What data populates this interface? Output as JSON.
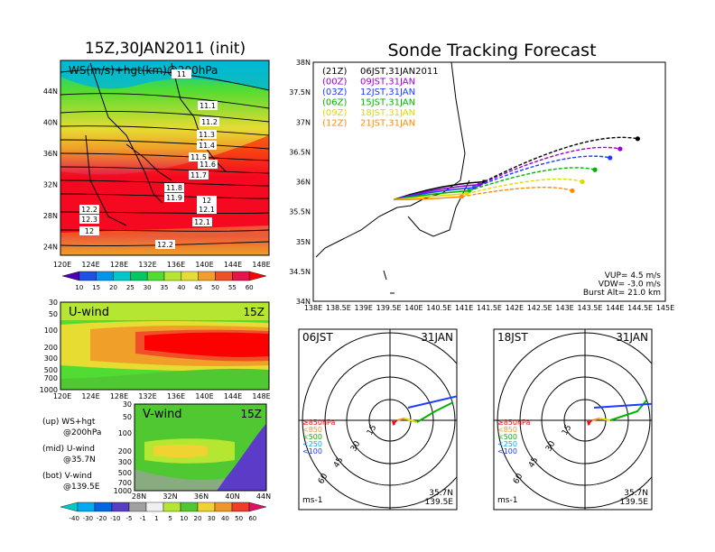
{
  "colors": {
    "ws_scale": [
      "#4b00b4",
      "#1e50e6",
      "#0096f0",
      "#00c8c8",
      "#00c864",
      "#50dc32",
      "#b4e632",
      "#e6dc32",
      "#f0a028",
      "#f05028",
      "#e6144b",
      "#ff0000"
    ],
    "diff_scale": [
      "#00c8c8",
      "#00aaf0",
      "#0064e6",
      "#5a3cc8",
      "#a0a0a0",
      "#f0f0f0",
      "#b4e632",
      "#50c832",
      "#f0d232",
      "#f09628",
      "#f03c28",
      "#dc1464"
    ],
    "track_colors": [
      "#000000",
      "#9b00d2",
      "#1e3cff",
      "#00b400",
      "#dcdc00",
      "#ff8c00"
    ]
  },
  "map_panel": {
    "title": "15Z,30JAN2011 (init)",
    "label": "WS(m/s)+hgt(km)@200hPa",
    "lat_labels": [
      "44N",
      "40N",
      "36N",
      "32N",
      "28N",
      "24N"
    ],
    "lon_labels": [
      "120E",
      "124E",
      "128E",
      "132E",
      "136E",
      "140E",
      "144E",
      "148E"
    ],
    "hgt_labels": [
      "11",
      "11.1",
      "11.2",
      "11.3",
      "11.4",
      "11.5",
      "11.6",
      "11.7",
      "11.8",
      "11.9",
      "12",
      "12.1",
      "12.2",
      "12.3",
      "12",
      "12.1",
      "12.2"
    ],
    "colorbar_ticks": [
      "10",
      "15",
      "20",
      "25",
      "30",
      "35",
      "40",
      "45",
      "50",
      "55",
      "60"
    ]
  },
  "uwind_panel": {
    "title": "U-wind",
    "time": "15Z",
    "pressure_labels": [
      "30",
      "50",
      "100",
      "200",
      "300",
      "500",
      "700",
      "1000"
    ],
    "lon_labels": [
      "120E",
      "124E",
      "128E",
      "132E",
      "136E",
      "140E",
      "144E",
      "148E"
    ]
  },
  "vwind_panel": {
    "title": "V-wind",
    "time": "15Z",
    "pressure_labels": [
      "30",
      "50",
      "100",
      "200",
      "300",
      "500",
      "700",
      "1000"
    ],
    "lat_labels": [
      "28N",
      "32N",
      "36N",
      "40N",
      "44N"
    ],
    "colorbar_ticks": [
      "-40",
      "-30",
      "-20",
      "-10",
      "-5",
      "-1",
      "1",
      "5",
      "10",
      "20",
      "30",
      "40",
      "50",
      "60"
    ]
  },
  "legend_notes": [
    [
      "(up) WS+hgt",
      "@200hPa"
    ],
    [
      "(mid) U-wind",
      "@35.7N"
    ],
    [
      "(bot) V-wind",
      "@139.5E"
    ]
  ],
  "tracking_panel": {
    "title": "Sonde Tracking Forecast",
    "lat_labels": [
      "38N",
      "37.5N",
      "37N",
      "36.5N",
      "36N",
      "35.5N",
      "35N",
      "34.5N",
      "34N"
    ],
    "lon_labels": [
      "138E",
      "138.5E",
      "139E",
      "139.5E",
      "140E",
      "140.5E",
      "141E",
      "141.5E",
      "142E",
      "142.5E",
      "143E",
      "143.5E",
      "144E",
      "144.5E",
      "145E"
    ],
    "legend": [
      {
        "code": "(21Z)",
        "time": "06JST,31JAN2011"
      },
      {
        "code": "(00Z)",
        "time": "09JST,31JAN"
      },
      {
        "code": "(03Z)",
        "time": "12JST,31JAN"
      },
      {
        "code": "(06Z)",
        "time": "15JST,31JAN"
      },
      {
        "code": "(09Z)",
        "time": "18JST,31JAN"
      },
      {
        "code": "(12Z)",
        "time": "21JST,31JAN"
      }
    ],
    "params": [
      "VUP=  4.5  m/s",
      "VDW= -3.0  m/s",
      "Burst Alt= 21.0  km"
    ]
  },
  "chart_data": [
    {
      "type": "line",
      "title": "Sonde Tracking Forecast",
      "xlabel": "",
      "ylabel": "",
      "xlim": [
        138,
        145
      ],
      "ylim": [
        34,
        38
      ],
      "series": [
        {
          "name": "(21Z) 06JST,31JAN2011",
          "start": [
            139.6,
            35.7
          ],
          "burst": [
            141.4,
            36.0
          ],
          "end": [
            144.45,
            36.72
          ]
        },
        {
          "name": "(00Z) 09JST,31JAN",
          "start": [
            139.6,
            35.7
          ],
          "burst": [
            141.3,
            35.95
          ],
          "end": [
            144.1,
            36.55
          ]
        },
        {
          "name": "(03Z) 12JST,31JAN",
          "start": [
            139.6,
            35.7
          ],
          "burst": [
            141.2,
            35.9
          ],
          "end": [
            143.9,
            36.4
          ]
        },
        {
          "name": "(06Z) 15JST,31JAN",
          "start": [
            139.6,
            35.7
          ],
          "burst": [
            141.1,
            35.85
          ],
          "end": [
            143.6,
            36.2
          ]
        },
        {
          "name": "(09Z) 18JST,31JAN",
          "start": [
            139.6,
            35.7
          ],
          "burst": [
            141.05,
            35.8
          ],
          "end": [
            143.35,
            36.0
          ]
        },
        {
          "name": "(12Z) 21JST,31JAN",
          "start": [
            139.6,
            35.7
          ],
          "burst": [
            140.95,
            35.75
          ],
          "end": [
            143.15,
            35.85
          ]
        }
      ]
    },
    {
      "type": "scatter",
      "title": "06JST 31JAN",
      "rings": [
        "15",
        "30",
        "45",
        "60"
      ],
      "units": "ms-1",
      "location": [
        "35.7N",
        "139.5E"
      ],
      "pressure_levels": [
        "≥850hPa",
        "<850",
        "<500",
        "<250",
        "<100"
      ]
    },
    {
      "type": "scatter",
      "title": "18JST 31JAN",
      "rings": [
        "15",
        "30",
        "45",
        "60"
      ],
      "units": "ms-1",
      "location": [
        "35.7N",
        "139.5E"
      ],
      "pressure_levels": [
        "≥850hPa",
        "<850",
        "<500",
        "<250",
        "<100"
      ]
    }
  ],
  "hodo1": {
    "time": "06JST",
    "date": "31JAN",
    "rings": [
      "15",
      "30",
      "45",
      "60"
    ],
    "units": "ms-1",
    "lat": "35.7N",
    "lon": "139.5E",
    "levels": [
      "≥850hPa",
      "<850",
      "<500",
      "<250",
      "<100"
    ]
  },
  "hodo2": {
    "time": "18JST",
    "date": "31JAN",
    "rings": [
      "15",
      "30",
      "45",
      "60"
    ],
    "units": "ms-1",
    "lat": "35.7N",
    "lon": "139.5E",
    "levels": [
      "≥850hPa",
      "<850",
      "<500",
      "<250",
      "<100"
    ]
  }
}
